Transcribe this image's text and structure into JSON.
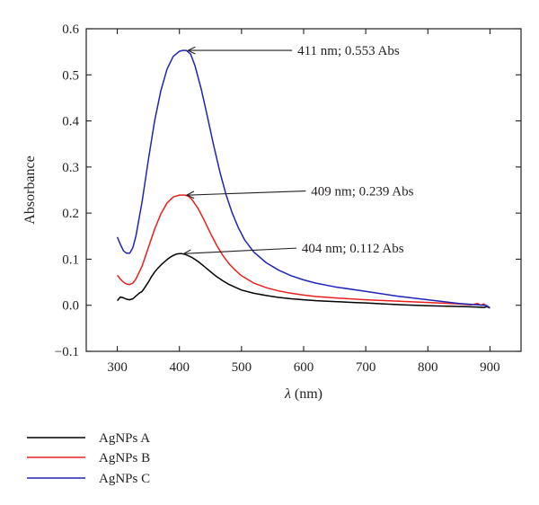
{
  "chart_data": {
    "type": "line",
    "xlabel_symbol": "λ",
    "xlabel_unit": " (nm)",
    "ylabel": "Absorbance",
    "xlim": [
      250,
      950
    ],
    "ylim": [
      -0.1,
      0.6
    ],
    "xticks": [
      300,
      400,
      500,
      600,
      700,
      800,
      900
    ],
    "yticks": [
      -0.1,
      0.0,
      0.1,
      0.2,
      0.3,
      0.4,
      0.5,
      0.6
    ],
    "ytick_labels": [
      "−0.1",
      "0.0",
      "0.1",
      "0.2",
      "0.3",
      "0.4",
      "0.5",
      "0.6"
    ],
    "grid": false,
    "legend_position": "bottom-left, below plot",
    "series": [
      {
        "name": "AgNPs A",
        "color": "#000000",
        "x": [
          300,
          305,
          310,
          315,
          320,
          325,
          330,
          335,
          340,
          345,
          350,
          355,
          360,
          365,
          370,
          375,
          380,
          385,
          390,
          395,
          400,
          404,
          410,
          420,
          430,
          440,
          450,
          460,
          470,
          480,
          490,
          500,
          520,
          540,
          560,
          580,
          600,
          620,
          650,
          680,
          700,
          730,
          760,
          800,
          830,
          860,
          880,
          890,
          895,
          900
        ],
        "y": [
          0.01,
          0.018,
          0.016,
          0.013,
          0.012,
          0.014,
          0.02,
          0.026,
          0.03,
          0.04,
          0.05,
          0.062,
          0.072,
          0.08,
          0.087,
          0.093,
          0.099,
          0.104,
          0.108,
          0.111,
          0.112,
          0.112,
          0.11,
          0.104,
          0.095,
          0.084,
          0.073,
          0.062,
          0.053,
          0.045,
          0.039,
          0.033,
          0.026,
          0.021,
          0.017,
          0.014,
          0.012,
          0.01,
          0.008,
          0.006,
          0.005,
          0.003,
          0.001,
          -0.001,
          -0.002,
          -0.003,
          -0.004,
          -0.005,
          -0.003,
          -0.006
        ]
      },
      {
        "name": "AgNPs B",
        "color": "#e8201f",
        "x": [
          300,
          305,
          310,
          315,
          320,
          325,
          330,
          340,
          350,
          360,
          370,
          380,
          390,
          400,
          409,
          415,
          420,
          430,
          440,
          450,
          460,
          470,
          480,
          490,
          500,
          520,
          540,
          560,
          580,
          600,
          620,
          650,
          700,
          750,
          800,
          850,
          870,
          880,
          885,
          890,
          895,
          900
        ],
        "y": [
          0.065,
          0.057,
          0.05,
          0.046,
          0.045,
          0.048,
          0.057,
          0.085,
          0.125,
          0.165,
          0.198,
          0.222,
          0.235,
          0.239,
          0.239,
          0.236,
          0.23,
          0.21,
          0.184,
          0.156,
          0.13,
          0.108,
          0.09,
          0.076,
          0.064,
          0.048,
          0.038,
          0.031,
          0.026,
          0.022,
          0.019,
          0.016,
          0.012,
          0.009,
          0.006,
          0.003,
          0.001,
          0.004,
          0.0,
          0.003,
          -0.002,
          -0.005
        ]
      },
      {
        "name": "AgNPs C",
        "color": "#1f24b8",
        "x": [
          300,
          305,
          310,
          315,
          320,
          325,
          330,
          340,
          350,
          360,
          370,
          380,
          390,
          400,
          405,
          411,
          418,
          425,
          435,
          445,
          455,
          465,
          475,
          485,
          495,
          505,
          520,
          540,
          560,
          580,
          600,
          620,
          650,
          700,
          750,
          800,
          850,
          870,
          880,
          890,
          895,
          900
        ],
        "y": [
          0.148,
          0.132,
          0.118,
          0.113,
          0.113,
          0.125,
          0.15,
          0.225,
          0.315,
          0.4,
          0.465,
          0.512,
          0.54,
          0.551,
          0.553,
          0.553,
          0.545,
          0.52,
          0.47,
          0.41,
          0.348,
          0.29,
          0.24,
          0.2,
          0.168,
          0.142,
          0.115,
          0.092,
          0.076,
          0.064,
          0.055,
          0.048,
          0.04,
          0.03,
          0.02,
          0.012,
          0.004,
          0.002,
          0.001,
          0.0,
          -0.001,
          -0.006
        ]
      }
    ],
    "annotations": [
      {
        "text": "411 nm; 0.553 Abs",
        "point": [
          411,
          0.553
        ],
        "text_x": 590,
        "text_y": 0.553
      },
      {
        "text": "409 nm; 0.239 Abs",
        "point": [
          409,
          0.239
        ],
        "text_x": 612,
        "text_y": 0.248
      },
      {
        "text": "404 nm; 0.112 Abs",
        "point": [
          404,
          0.112
        ],
        "text_x": 597,
        "text_y": 0.124
      }
    ]
  }
}
